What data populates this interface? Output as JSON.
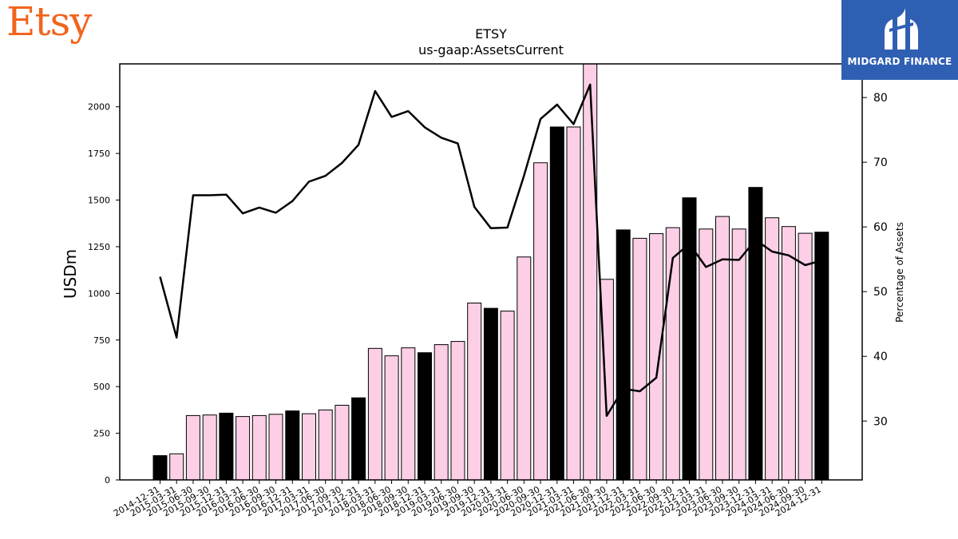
{
  "header": {
    "brand_logo_text": "Etsy",
    "badge_label": "MIDGARD FINANCE",
    "badge_icon": "midgard-finance-logo-icon"
  },
  "colors": {
    "brand": "#f1641e",
    "badge_bg": "#2f5fb3",
    "bar_year_end": "#000000",
    "bar_other": "#fccfe6",
    "line": "#000000"
  },
  "chart_data": {
    "type": "bar",
    "title": "ETSY",
    "subtitle": "us-gaap:AssetsCurrent",
    "ylabel": "USDm",
    "y2label": "Percentage of Assets",
    "ylim": [
      0,
      2230
    ],
    "y2lim": [
      20.9,
      85.2
    ],
    "yticks": [
      "0",
      "250",
      "500",
      "750",
      "1000",
      "1250",
      "1500",
      "1750",
      "2000"
    ],
    "y2ticks": [
      "30",
      "40",
      "50",
      "60",
      "70",
      "80"
    ],
    "grid": false,
    "categories": [
      "2014-12-31",
      "2015-03-31",
      "2015-06-30",
      "2015-09-30",
      "2015-12-31",
      "2016-03-31",
      "2016-06-30",
      "2016-09-30",
      "2016-12-31",
      "2017-03-31",
      "2017-06-30",
      "2017-09-30",
      "2017-12-31",
      "2018-03-31",
      "2018-06-30",
      "2018-09-30",
      "2018-12-31",
      "2019-03-31",
      "2019-06-30",
      "2019-09-30",
      "2019-12-31",
      "2020-03-31",
      "2020-06-30",
      "2020-09-30",
      "2020-12-31",
      "2021-03-31",
      "2021-06-30",
      "2021-09-30",
      "2021-12-31",
      "2022-03-31",
      "2022-06-30",
      "2022-09-30",
      "2022-12-31",
      "2023-03-31",
      "2023-06-30",
      "2023-09-30",
      "2023-12-31",
      "2024-03-31",
      "2024-06-30",
      "2024-09-30",
      "2024-12-31"
    ],
    "series": [
      {
        "type": "bar",
        "values": [
          130,
          140,
          345,
          348,
          358,
          340,
          345,
          352,
          370,
          355,
          375,
          400,
          440,
          705,
          665,
          708,
          682,
          725,
          742,
          948,
          920,
          905,
          1195,
          1700,
          1892,
          1892,
          2240,
          1075,
          1340,
          1295,
          1320,
          1352,
          1512,
          1345,
          1412,
          1345,
          1568,
          1405,
          1358,
          1322,
          1328
        ],
        "year_end_highlight": [
          true,
          false,
          false,
          false,
          true,
          false,
          false,
          false,
          true,
          false,
          false,
          false,
          true,
          false,
          false,
          false,
          true,
          false,
          false,
          false,
          true,
          false,
          false,
          false,
          true,
          false,
          false,
          false,
          true,
          false,
          false,
          false,
          true,
          false,
          false,
          false,
          true,
          false,
          false,
          false,
          true
        ]
      },
      {
        "type": "line",
        "axis": "right",
        "values": [
          52.3,
          42.9,
          64.9,
          64.9,
          65.0,
          62.1,
          63.0,
          62.2,
          64.0,
          67.0,
          67.9,
          69.9,
          72.7,
          81.0,
          77.0,
          77.9,
          75.4,
          73.8,
          72.9,
          63.1,
          59.8,
          59.9,
          67.9,
          76.7,
          78.9,
          75.9,
          82.0,
          30.8,
          35.0,
          34.6,
          36.7,
          55.2,
          57.4,
          53.8,
          55.0,
          54.9,
          58.0,
          56.2,
          55.6,
          54.1,
          54.8
        ]
      }
    ]
  }
}
